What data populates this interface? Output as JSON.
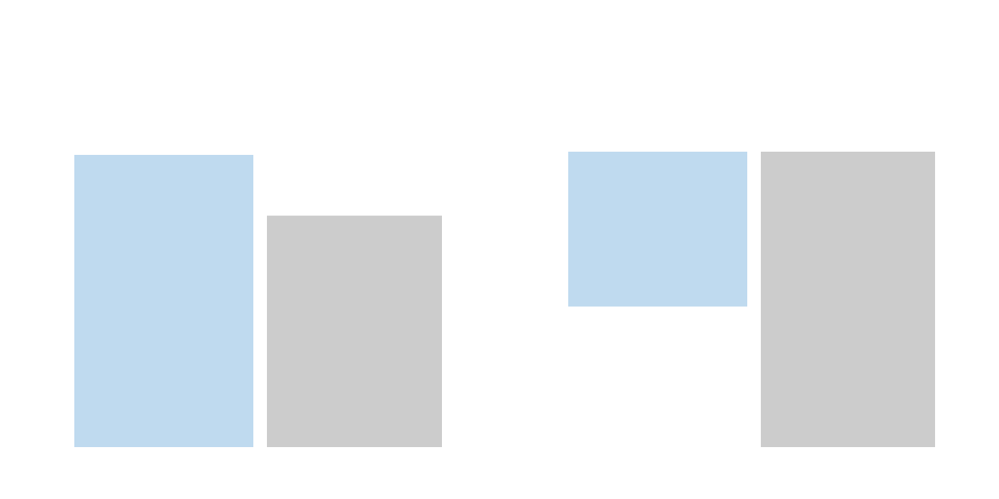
{
  "chart_data": [
    {
      "type": "bar",
      "title": "",
      "xlabel": "",
      "ylabel": "",
      "grid": false,
      "ylim": [
        0,
        100
      ],
      "series": [
        {
          "values": [
            100
          ],
          "color": "#bfdaef"
        },
        {
          "values": [
            79.2
          ],
          "color": "#cccccc"
        }
      ]
    },
    {
      "type": "bar",
      "title": "",
      "xlabel": "",
      "ylabel": "",
      "grid": false,
      "ylim": [
        0,
        100
      ],
      "series": [
        {
          "values": [
            52.4
          ],
          "color": "#bfdaef"
        },
        {
          "values": [
            100
          ],
          "color": "#cccccc"
        }
      ]
    }
  ]
}
